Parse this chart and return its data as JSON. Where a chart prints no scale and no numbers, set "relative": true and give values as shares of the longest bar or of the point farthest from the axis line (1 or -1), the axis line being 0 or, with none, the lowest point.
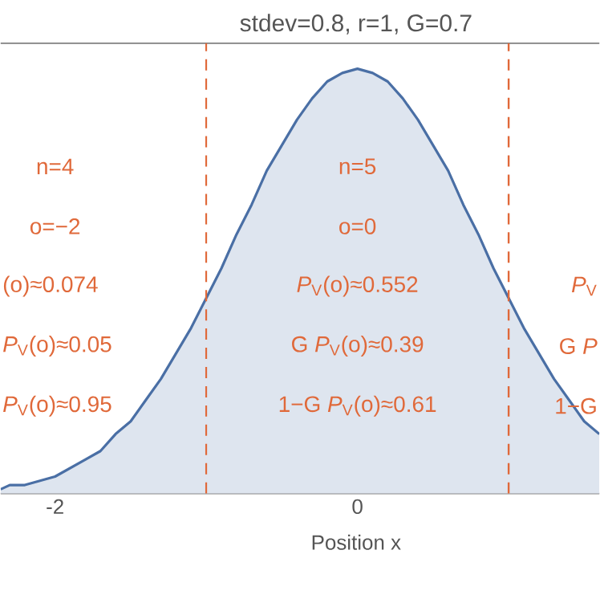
{
  "chart_data": {
    "type": "area",
    "title": "stdev=0.8, r=1, G=0.7",
    "xlabel": "Position x",
    "relative": true,
    "x": [
      -2.36,
      -2.3,
      -2.2,
      -2.1,
      -2.0,
      -1.9,
      -1.8,
      -1.7,
      -1.6,
      -1.5,
      -1.4,
      -1.3,
      -1.2,
      -1.1,
      -1.0,
      -0.9,
      -0.8,
      -0.7,
      -0.6,
      -0.5,
      -0.4,
      -0.3,
      -0.2,
      -0.1,
      0.0,
      0.1,
      0.2,
      0.3,
      0.4,
      0.5,
      0.6,
      0.7,
      0.8,
      0.9,
      1.0,
      1.1,
      1.2,
      1.3,
      1.4,
      1.5,
      1.6
    ],
    "series": [
      {
        "color": "#4a6fa5",
        "values": [
          0.01,
          0.02,
          0.02,
          0.03,
          0.04,
          0.06,
          0.08,
          0.1,
          0.14,
          0.17,
          0.22,
          0.27,
          0.33,
          0.39,
          0.46,
          0.53,
          0.61,
          0.68,
          0.76,
          0.82,
          0.88,
          0.93,
          0.97,
          0.99,
          1.0,
          0.99,
          0.97,
          0.93,
          0.88,
          0.82,
          0.76,
          0.68,
          0.61,
          0.53,
          0.46,
          0.39,
          0.33,
          0.27,
          0.22,
          0.17,
          0.14
        ]
      }
    ],
    "xlim": [
      -2.36,
      1.6
    ],
    "xticks": [
      -2,
      0
    ],
    "ref_lines": [
      {
        "axis": "x",
        "value": -1,
        "color": "#e0693a",
        "line_style": "dashed"
      },
      {
        "axis": "x",
        "value": 1,
        "color": "#e0693a",
        "line_style": "dashed"
      }
    ],
    "annotations": [
      "n=4",
      "o=−2",
      "(o)≈0.074",
      "*P*$_{V}$(o)≈0.05",
      "*P*$_{V}$(o)≈0.95",
      "n=5",
      "o=0",
      "*P*$_{V}$(o)≈0.552",
      "G *P*$_{V}$(o)≈0.39",
      "1−G *P*$_{V}$(o)≈0.61",
      "*P*$_{V}$",
      "G *P*",
      "1−G"
    ]
  }
}
